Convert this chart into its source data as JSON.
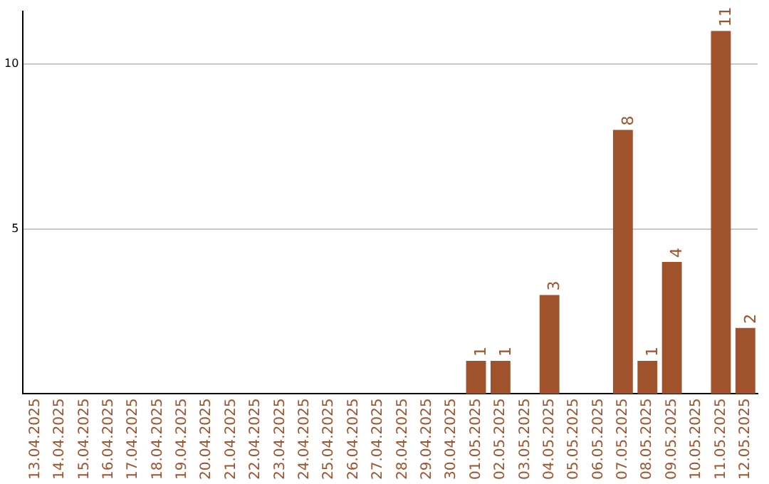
{
  "chart_data": {
    "type": "bar",
    "categories": [
      "13.04.2025",
      "14.04.2025",
      "15.04.2025",
      "16.04.2025",
      "17.04.2025",
      "18.04.2025",
      "19.04.2025",
      "20.04.2025",
      "21.04.2025",
      "22.04.2025",
      "23.04.2025",
      "24.04.2025",
      "25.04.2025",
      "26.04.2025",
      "27.04.2025",
      "28.04.2025",
      "29.04.2025",
      "30.04.2025",
      "01.05.2025",
      "02.05.2025",
      "03.05.2025",
      "04.05.2025",
      "05.05.2025",
      "06.05.2025",
      "07.05.2025",
      "08.05.2025",
      "09.05.2025",
      "10.05.2025",
      "11.05.2025",
      "12.05.2025"
    ],
    "values": [
      null,
      null,
      null,
      null,
      null,
      null,
      null,
      null,
      null,
      null,
      null,
      null,
      null,
      null,
      null,
      null,
      null,
      null,
      1,
      1,
      null,
      3,
      null,
      null,
      8,
      1,
      4,
      null,
      11,
      2
    ],
    "color": "#a0522d",
    "ylim": [
      0,
      11.6
    ],
    "yticks": [
      5,
      10
    ],
    "grid": "y",
    "data_labels": true,
    "legend": false
  }
}
